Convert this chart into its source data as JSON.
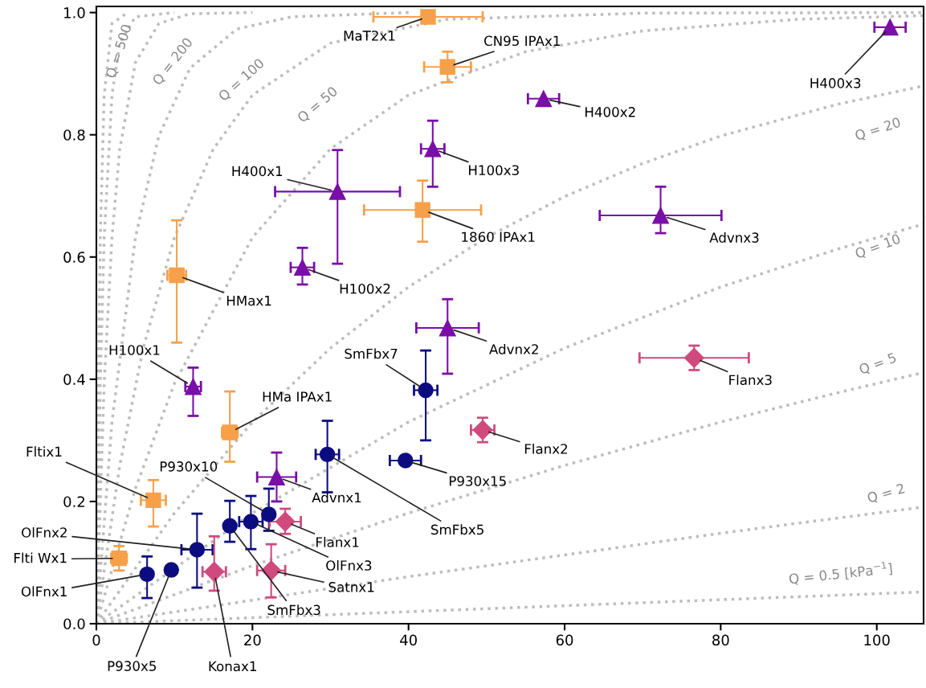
{
  "chart_data": {
    "type": "scatter",
    "xlim": [
      0,
      106
    ],
    "ylim": [
      0,
      1.01
    ],
    "xticks": [
      0,
      20,
      40,
      60,
      80,
      100
    ],
    "yticks": [
      {
        "value": 0,
        "label": "0.0"
      },
      {
        "value": 0.2,
        "label": "0.2"
      },
      {
        "value": 0.4,
        "label": "0.4"
      },
      {
        "value": 0.6,
        "label": "0.6"
      },
      {
        "value": 0.8,
        "label": "0.8"
      },
      {
        "value": 1,
        "label": "1.0"
      }
    ],
    "grid": false,
    "legend": false,
    "series": [
      {
        "color": "#f7a04a",
        "marker": "square",
        "x": [
          42.5,
          45.0,
          41.8,
          10.3,
          17.1,
          7.3,
          2.9
        ],
        "values": [
          0.993,
          0.911,
          0.677,
          0.57,
          0.313,
          0.202,
          0.107
        ],
        "xerrors": [
          7,
          3,
          7.5,
          1.2,
          1,
          1.6,
          1
        ],
        "errors": [
          null,
          0.025,
          [
            0.625,
            0.725
          ],
          [
            0.46,
            0.66
          ],
          [
            0.265,
            0.38
          ],
          [
            0.159,
            0.235
          ],
          0.02
        ]
      },
      {
        "color": "#7a0ea8",
        "marker": "triangle",
        "x": [
          101.7,
          57.3,
          43.1,
          30.9,
          72.3,
          26.4,
          45.0,
          12.4,
          23.1
        ],
        "values": [
          0.976,
          0.859,
          0.777,
          0.707,
          0.668,
          0.583,
          0.484,
          0.388,
          0.24
        ],
        "xerrors": [
          2,
          2,
          1.5,
          8,
          7.8,
          1.5,
          4,
          1,
          2.5
        ],
        "errors": [
          null,
          null,
          [
            0.715,
            0.823
          ],
          [
            0.589,
            0.775
          ],
          [
            0.639,
            0.715
          ],
          [
            0.555,
            0.615
          ],
          [
            0.409,
            0.531
          ],
          [
            0.34,
            0.419
          ],
          0.04
        ]
      },
      {
        "color": "#0c0c80",
        "marker": "circle",
        "x": [
          42.2,
          29.6,
          39.6,
          17.1,
          19.8,
          22.1,
          12.9,
          6.5,
          9.6
        ],
        "values": [
          0.382,
          0.277,
          0.267,
          0.16,
          0.167,
          0.179,
          0.121,
          0.081,
          0.088
        ],
        "xerrors": [
          1.5,
          1.5,
          2,
          null,
          1.5,
          null,
          2,
          null,
          null
        ],
        "errors": [
          [
            0.3,
            0.447
          ],
          [
            0.215,
            0.332
          ],
          null,
          [
            0.134,
            0.201
          ],
          [
            0.122,
            0.209
          ],
          [
            0.152,
            0.221
          ],
          [
            0.059,
            0.18
          ],
          [
            0.042,
            0.11
          ],
          null
        ]
      },
      {
        "color": "#d04a7e",
        "marker": "diamond",
        "x": [
          76.6,
          49.5,
          24.2,
          22.4,
          15.1
        ],
        "values": [
          0.435,
          0.317,
          0.167,
          0.087,
          0.085
        ],
        "xerrors": [
          7,
          1.5,
          2,
          1.8,
          1.5
        ],
        "errors": [
          0.02,
          0.02,
          [
            0.147,
            0.188
          ],
          [
            0.043,
            0.13
          ],
          [
            0.054,
            0.143
          ]
        ]
      },
      {
        "type": "line",
        "color": "#bdbdbd",
        "line_style": "dotted",
        "marker": "none",
        "x": [
          0,
          0.25,
          0.5,
          1,
          2,
          4
        ],
        "values": [
          0,
          0.393,
          0.632,
          0.865,
          0.982,
          1.0
        ]
      },
      {
        "type": "line",
        "color": "#bdbdbd",
        "line_style": "dotted",
        "marker": "none",
        "x": [
          0,
          0.5,
          1,
          2,
          3,
          5,
          10
        ],
        "values": [
          0,
          0.393,
          0.632,
          0.865,
          0.95,
          0.993,
          1.0
        ]
      },
      {
        "type": "line",
        "color": "#bdbdbd",
        "line_style": "dotted",
        "marker": "none",
        "x": [
          0,
          1,
          2,
          3,
          5,
          8,
          12,
          20
        ],
        "values": [
          0,
          0.393,
          0.632,
          0.777,
          0.918,
          0.982,
          0.998,
          1.0
        ]
      },
      {
        "type": "line",
        "color": "#bdbdbd",
        "line_style": "dotted",
        "marker": "none",
        "x": [
          0,
          2,
          5,
          8,
          12,
          18,
          25,
          40
        ],
        "values": [
          0,
          0.33,
          0.632,
          0.798,
          0.909,
          0.973,
          0.993,
          1.0
        ]
      },
      {
        "type": "line",
        "color": "#bdbdbd",
        "line_style": "dotted",
        "marker": "none",
        "x": [
          0,
          3,
          6,
          10,
          15,
          20,
          30,
          45,
          70,
          106
        ],
        "values": [
          0,
          0.259,
          0.451,
          0.632,
          0.777,
          0.865,
          0.95,
          0.989,
          0.999,
          1.0
        ]
      },
      {
        "type": "line",
        "color": "#bdbdbd",
        "line_style": "dotted",
        "marker": "none",
        "x": [
          0,
          5,
          10,
          20,
          30,
          40,
          55,
          70,
          90,
          106
        ],
        "values": [
          0,
          0.221,
          0.393,
          0.632,
          0.777,
          0.865,
          0.936,
          0.97,
          0.989,
          0.995
        ]
      },
      {
        "type": "line",
        "color": "#bdbdbd",
        "line_style": "dotted",
        "marker": "none",
        "x": [
          0,
          10,
          20,
          30,
          40,
          50,
          60,
          70,
          80,
          95,
          106
        ],
        "values": [
          0,
          0.181,
          0.33,
          0.451,
          0.551,
          0.632,
          0.699,
          0.753,
          0.798,
          0.85,
          0.88
        ]
      },
      {
        "type": "line",
        "color": "#bdbdbd",
        "line_style": "dotted",
        "marker": "none",
        "x": [
          0,
          20,
          40,
          60,
          80,
          95,
          106
        ],
        "values": [
          0,
          0.181,
          0.33,
          0.451,
          0.551,
          0.613,
          0.654
        ]
      },
      {
        "type": "line",
        "color": "#bdbdbd",
        "line_style": "dotted",
        "marker": "none",
        "x": [
          0,
          20,
          40,
          60,
          80,
          95,
          106
        ],
        "values": [
          0,
          0.095,
          0.181,
          0.259,
          0.33,
          0.378,
          0.411
        ]
      },
      {
        "type": "line",
        "color": "#bdbdbd",
        "line_style": "dotted",
        "marker": "none",
        "x": [
          0,
          40,
          80,
          106
        ],
        "values": [
          0,
          0.077,
          0.148,
          0.191
        ]
      },
      {
        "type": "line",
        "color": "#bdbdbd",
        "line_style": "dotted",
        "marker": "none",
        "x": [
          0,
          55,
          106
        ],
        "values": [
          0,
          0.027,
          0.052
        ]
      }
    ],
    "annotations": [
      {
        "text": "MaT2x1",
        "x": 42.5,
        "y": 0.993
      },
      {
        "text": "CN95 IPAx1",
        "x": 45.0,
        "y": 0.911
      },
      {
        "text": "1860 IPAx1",
        "x": 41.8,
        "y": 0.677
      },
      {
        "text": "HMax1",
        "x": 10.3,
        "y": 0.57
      },
      {
        "text": "HMa IPAx1",
        "x": 17.1,
        "y": 0.313
      },
      {
        "text": "Fltix1",
        "x": 7.3,
        "y": 0.202
      },
      {
        "text": "Flti Wx1",
        "x": 2.9,
        "y": 0.107
      },
      {
        "text": "H400x3",
        "x": 101.7,
        "y": 0.976
      },
      {
        "text": "H400x2",
        "x": 57.3,
        "y": 0.859
      },
      {
        "text": "H100x3",
        "x": 43.1,
        "y": 0.777
      },
      {
        "text": "H400x1",
        "x": 30.9,
        "y": 0.707
      },
      {
        "text": "Advnx3",
        "x": 72.3,
        "y": 0.668
      },
      {
        "text": "H100x2",
        "x": 26.4,
        "y": 0.583
      },
      {
        "text": "Advnx2",
        "x": 45.0,
        "y": 0.484
      },
      {
        "text": "H100x1",
        "x": 12.4,
        "y": 0.388
      },
      {
        "text": "Advnx1",
        "x": 23.1,
        "y": 0.24
      },
      {
        "text": "SmFbx7",
        "x": 42.2,
        "y": 0.382
      },
      {
        "text": "SmFbx5",
        "x": 29.6,
        "y": 0.277
      },
      {
        "text": "P930x15",
        "x": 39.6,
        "y": 0.267
      },
      {
        "text": "SmFbx3",
        "x": 17.1,
        "y": 0.16
      },
      {
        "text": "OlFnx3",
        "x": 19.8,
        "y": 0.167
      },
      {
        "text": "P930x10",
        "x": 22.1,
        "y": 0.179
      },
      {
        "text": "OlFnx2",
        "x": 12.9,
        "y": 0.121
      },
      {
        "text": "OlFnx1",
        "x": 6.5,
        "y": 0.081
      },
      {
        "text": "P930x5",
        "x": 9.6,
        "y": 0.088
      },
      {
        "text": "Flanx3",
        "x": 76.6,
        "y": 0.435
      },
      {
        "text": "Flanx2",
        "x": 49.5,
        "y": 0.317
      },
      {
        "text": "Flanx1",
        "x": 24.2,
        "y": 0.167
      },
      {
        "text": "Satnx1",
        "x": 22.4,
        "y": 0.087
      },
      {
        "text": "Konax1",
        "x": 15.1,
        "y": 0.085
      },
      "Q = 500",
      "Q = 200",
      "Q = 100",
      "Q = 50",
      "Q = 20",
      "Q = 10",
      "Q = 5",
      "Q = 2",
      "Q = 0.5 [kPa$^{−1}$]"
    ]
  }
}
